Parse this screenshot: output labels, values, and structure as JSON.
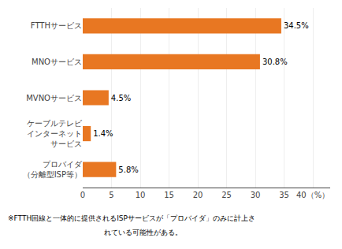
{
  "chart_data": {
    "type": "bar",
    "orientation": "horizontal",
    "categories": [
      "プロバイダ\n（分離型ISP等）",
      "ケーブルテレビ\nインターネット\nサービス",
      "MVNOサービス",
      "MNOサービス",
      "FTTHサービス"
    ],
    "values": [
      5.8,
      1.4,
      4.5,
      30.8,
      34.5
    ],
    "value_labels": [
      "5.8%",
      "1.4%",
      "4.5%",
      "30.8%",
      "34.5%"
    ],
    "data_labels": true,
    "color": "#E87722",
    "xlim": [
      0,
      43
    ],
    "xticks": [
      0,
      5,
      10,
      15,
      20,
      25,
      30,
      35,
      {
        "value": 40,
        "label": "40（%）"
      }
    ],
    "grid": true,
    "annotations": [
      "※FTTH回線と一体的に提供されるISPサービスが「プロバイダ」のみに計上さ",
      "れている可能性がある。"
    ]
  }
}
